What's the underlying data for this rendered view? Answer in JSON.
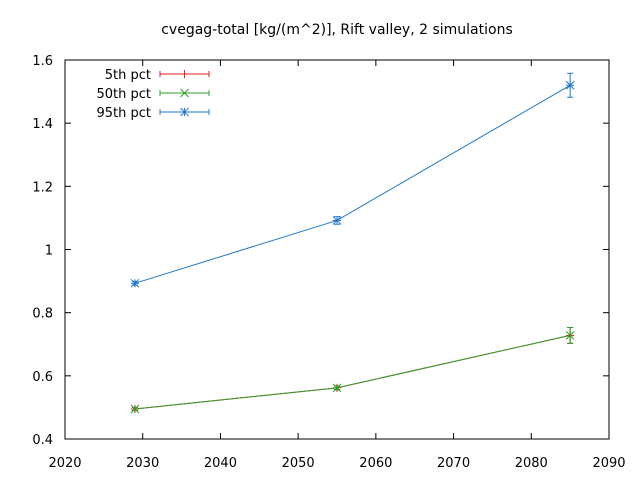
{
  "chart_data": {
    "type": "line",
    "title": "cvegag-total [kg/(m^2)], Rift valley, 2 simulations",
    "xlabel": "",
    "ylabel": "",
    "xlim": [
      2020,
      2090
    ],
    "ylim": [
      0.4,
      1.6
    ],
    "x_ticks": [
      2020,
      2030,
      2040,
      2050,
      2060,
      2070,
      2080,
      2090
    ],
    "y_ticks": [
      0.4,
      0.6,
      0.8,
      1.0,
      1.2,
      1.4,
      1.6
    ],
    "y_tick_labels": [
      "0.4",
      "0.6",
      "0.8",
      "1",
      "1.2",
      "1.4",
      "1.6"
    ],
    "grid": false,
    "legend_position": "top-left",
    "series": [
      {
        "name": "5th pct",
        "color": "#e41a1c",
        "marker": "plus",
        "x": [
          2029,
          2055,
          2085
        ],
        "y": [
          0.495,
          0.562,
          0.728
        ],
        "err": [
          0.005,
          0.006,
          0.025
        ]
      },
      {
        "name": "50th pct",
        "color": "#2ca02c",
        "marker": "x",
        "x": [
          2029,
          2055,
          2085
        ],
        "y": [
          0.495,
          0.562,
          0.728
        ],
        "err": [
          0.005,
          0.006,
          0.025
        ]
      },
      {
        "name": "95th pct",
        "color": "#1f78c8",
        "marker": "star",
        "x": [
          2029,
          2055,
          2085
        ],
        "y": [
          0.893,
          1.092,
          1.52
        ],
        "err": [
          0.006,
          0.012,
          0.038
        ]
      }
    ]
  }
}
